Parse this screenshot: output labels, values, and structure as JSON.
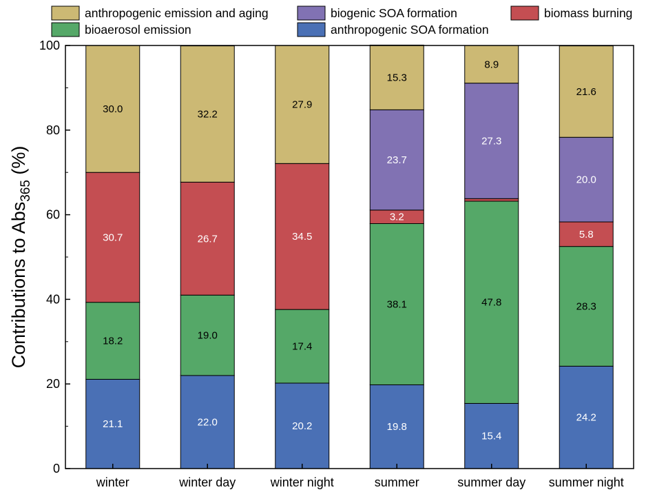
{
  "chart_data": {
    "type": "bar",
    "stacked": true,
    "categories": [
      "winter",
      "winter day",
      "winter night",
      "summer",
      "summer day",
      "summer night"
    ],
    "ylabel": "Contributions to Abs",
    "ylabel_subscript": "365",
    "ylabel_suffix": " (%)",
    "ylim": [
      0,
      100
    ],
    "yticks": [
      0,
      20,
      40,
      60,
      80,
      100
    ],
    "legend_placement": "top",
    "series": [
      {
        "name": "anthropogenic SOA formation",
        "color": "#4a70b5",
        "label_color": "#ffffff",
        "values": [
          21.1,
          22.0,
          20.2,
          19.8,
          15.4,
          24.2
        ],
        "labels": [
          "21.1",
          "22.0",
          "20.2",
          "19.8",
          "15.4",
          "24.2"
        ]
      },
      {
        "name": "bioaerosol emission",
        "color": "#55a868",
        "label_color": "#000000",
        "values": [
          18.2,
          19.0,
          17.4,
          38.1,
          47.8,
          28.3
        ],
        "labels": [
          "18.2",
          "19.0",
          "17.4",
          "38.1",
          "47.8",
          "28.3"
        ]
      },
      {
        "name": "biomass burning",
        "color": "#c44e52",
        "label_color": "#ffffff",
        "values": [
          30.7,
          26.7,
          34.5,
          3.2,
          0.6,
          5.8
        ],
        "labels": [
          "30.7",
          "26.7",
          "34.5",
          "3.2",
          "",
          "5.8"
        ]
      },
      {
        "name": "biogenic SOA formation",
        "color": "#8172b3",
        "label_color": "#ffffff",
        "values": [
          0,
          0,
          0,
          23.7,
          27.3,
          20.0
        ],
        "labels": [
          "",
          "",
          "",
          "23.7",
          "27.3",
          "20.0"
        ]
      },
      {
        "name": "anthropogenic emission and aging",
        "color": "#ccb974",
        "label_color": "#000000",
        "values": [
          30.0,
          32.2,
          27.9,
          15.3,
          8.9,
          21.6
        ],
        "labels": [
          "30.0",
          "32.2",
          "27.9",
          "15.3",
          "8.9",
          "21.6"
        ]
      }
    ],
    "legend_order": [
      4,
      3,
      2,
      1,
      0
    ]
  }
}
